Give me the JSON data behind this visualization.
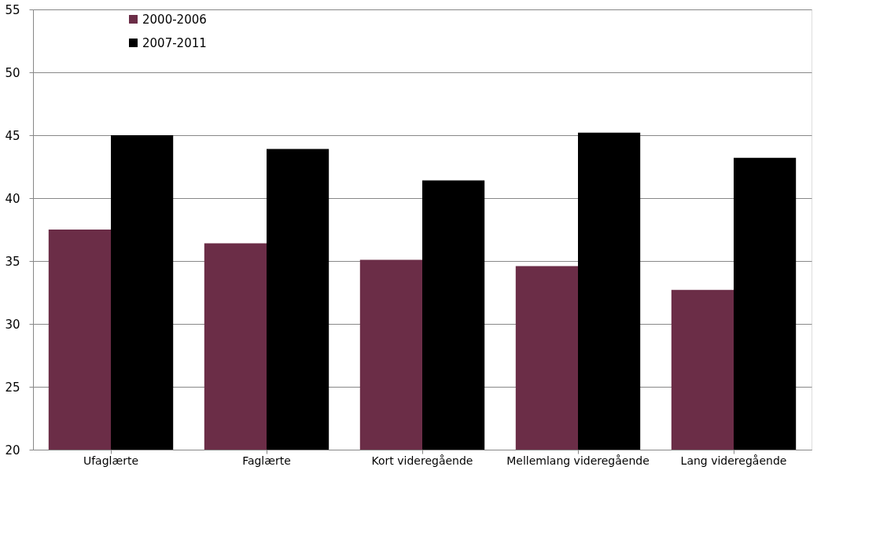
{
  "chart_data": {
    "type": "bar",
    "categories": [
      "Ufaglærte",
      "Faglærte",
      "Kort videregående",
      "Mellemlang videregående",
      "Lang videregående"
    ],
    "series": [
      {
        "name": "2000-2006",
        "color": "#6b2d47",
        "values": [
          37.5,
          36.4,
          35.1,
          34.6,
          32.7
        ]
      },
      {
        "name": "2007-2011",
        "color": "#000000",
        "values": [
          45.0,
          43.9,
          41.4,
          45.2,
          43.2
        ]
      }
    ],
    "ylim": [
      20,
      55
    ],
    "yticks": [
      20,
      25,
      30,
      35,
      40,
      45,
      50,
      55
    ],
    "grid": "y",
    "legend": "top left"
  }
}
